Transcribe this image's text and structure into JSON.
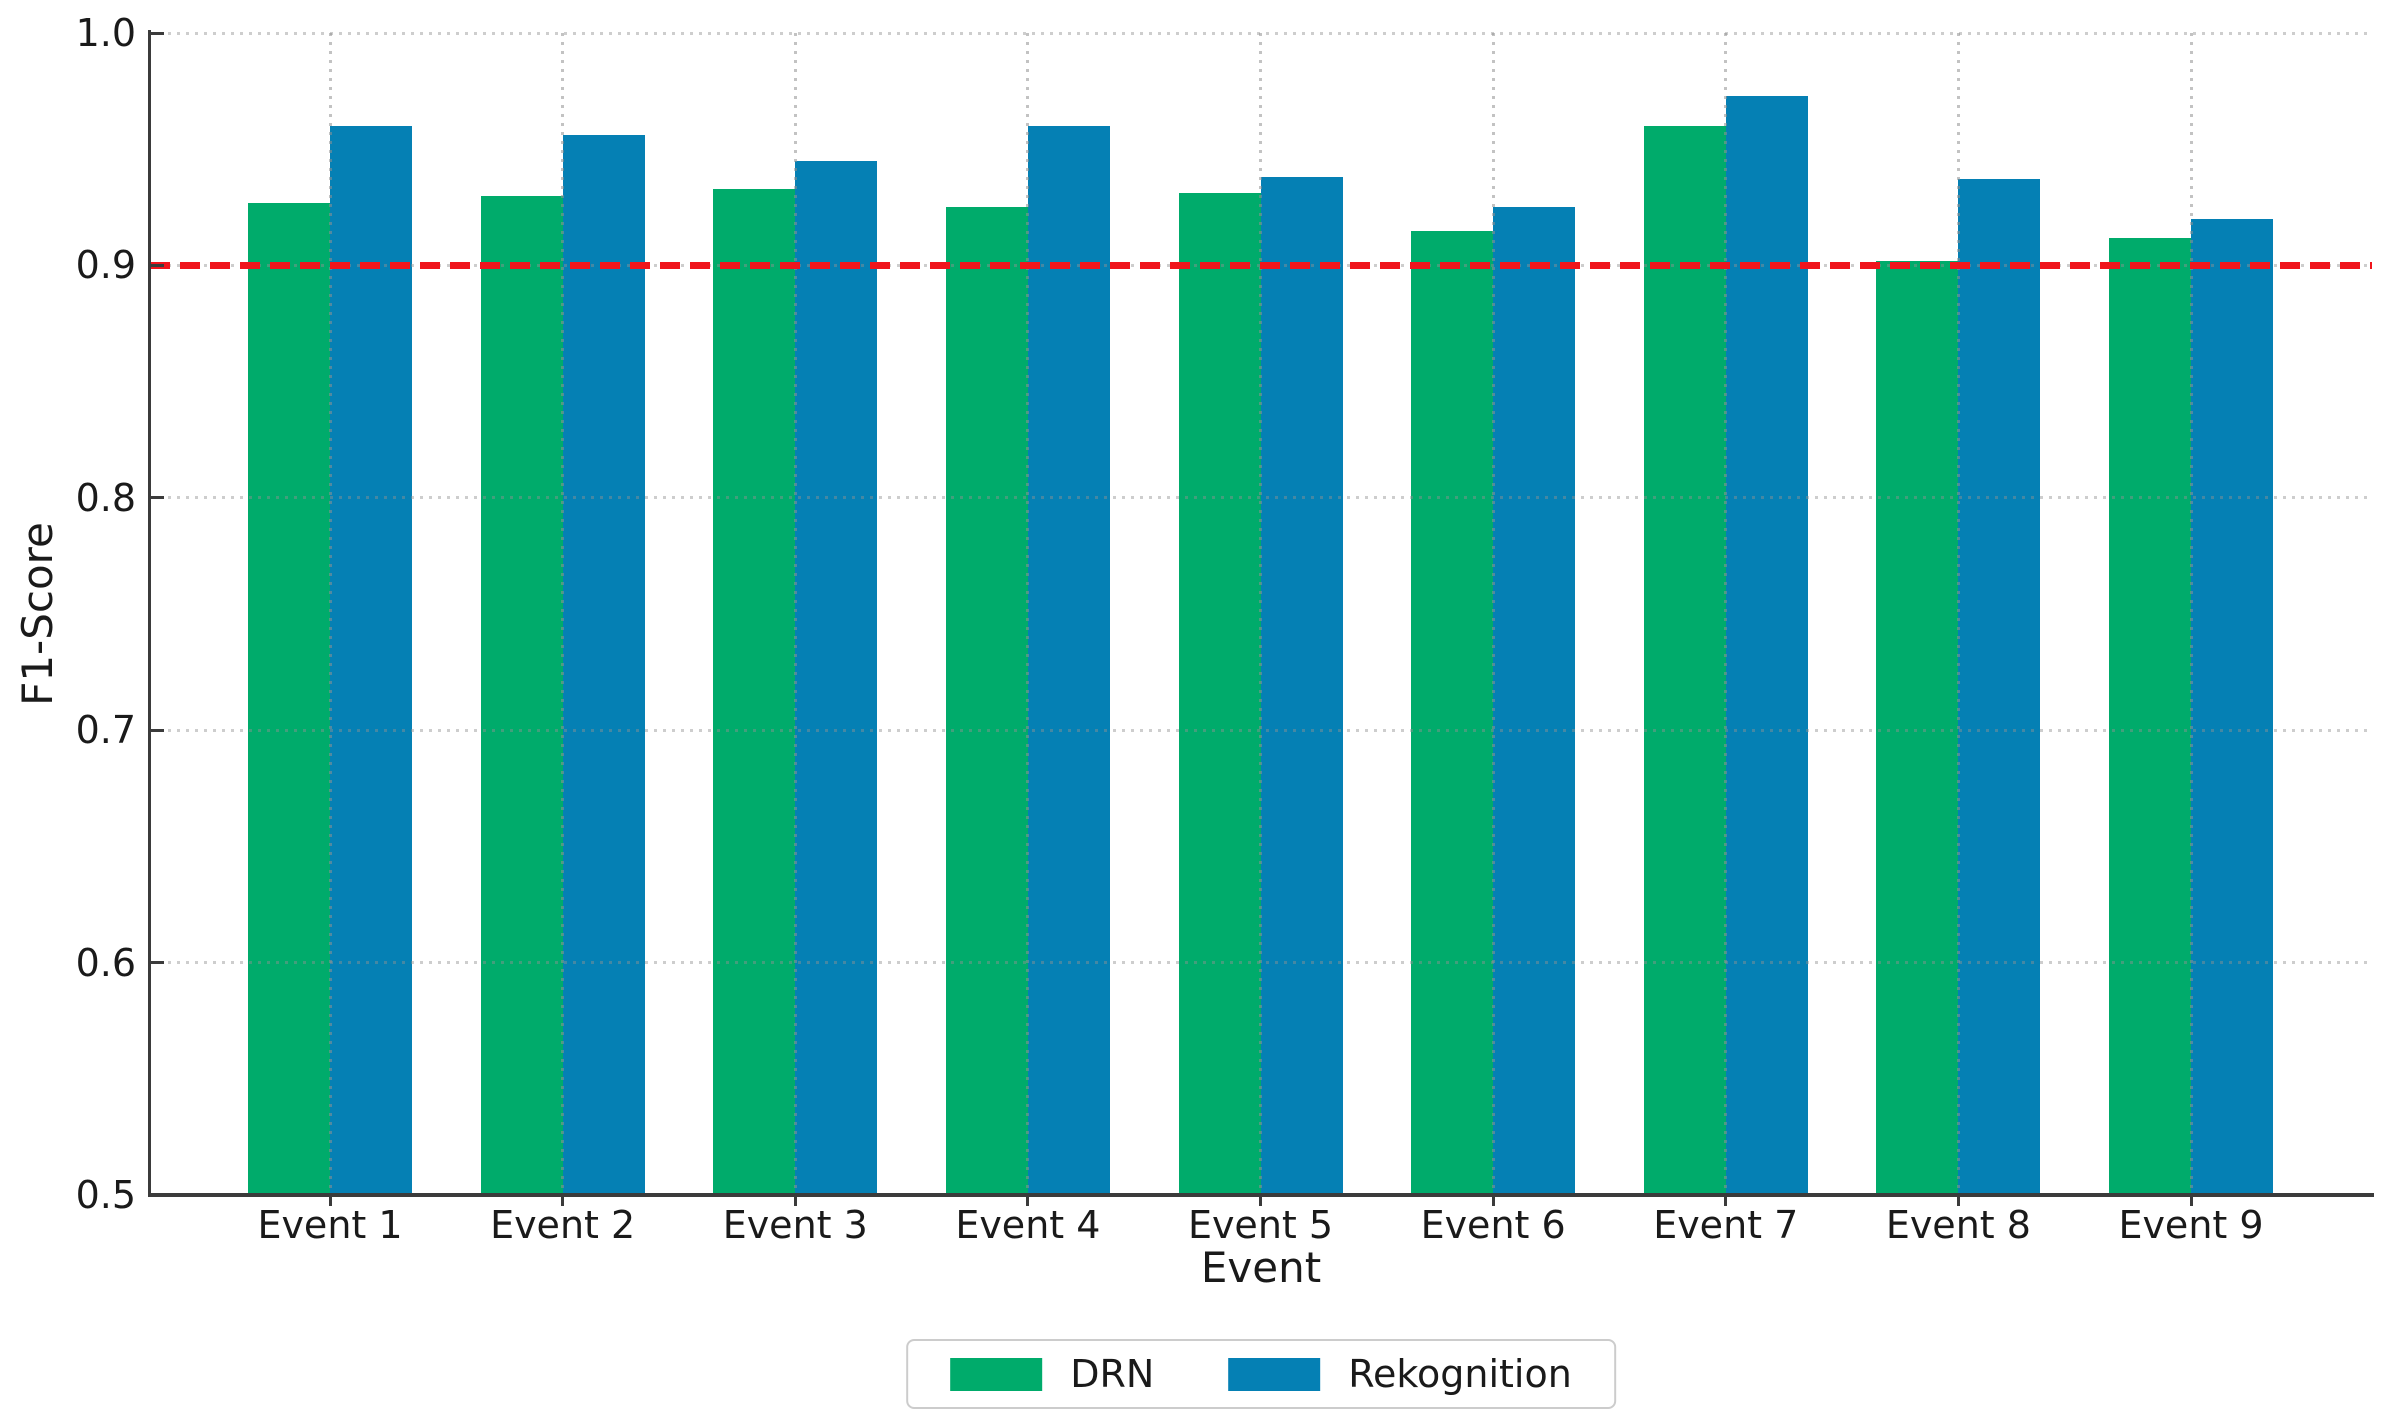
{
  "chart_data": {
    "type": "bar",
    "title": "",
    "categories": [
      "Event 1",
      "Event 2",
      "Event 3",
      "Event 4",
      "Event 5",
      "Event 6",
      "Event 7",
      "Event 8",
      "Event 9"
    ],
    "series": [
      {
        "name": "DRN",
        "color": "#00ab6b",
        "values": [
          0.927,
          0.93,
          0.933,
          0.925,
          0.931,
          0.915,
          0.96,
          0.902,
          0.912
        ]
      },
      {
        "name": "Rekognition",
        "color": "#0580b4",
        "values": [
          0.96,
          0.956,
          0.945,
          0.96,
          0.938,
          0.925,
          0.973,
          0.937,
          0.92
        ]
      }
    ],
    "xlabel": "Event",
    "ylabel": "F1-Score",
    "ylim": [
      0.5,
      1.0
    ],
    "yticks": [
      0.5,
      0.6,
      0.7,
      0.8,
      0.9,
      1.0
    ],
    "reference_line": {
      "value": 0.9,
      "color": "#f0151c",
      "style": "dashed"
    },
    "grid": {
      "style": "dotted",
      "color": "#c9c9c9",
      "horizontal": true,
      "vertical": true
    },
    "legend": {
      "position": "bottom-center",
      "entries": [
        "DRN",
        "Rekognition"
      ]
    },
    "axis_color": "#3b3b3b",
    "background": "#ffffff"
  }
}
